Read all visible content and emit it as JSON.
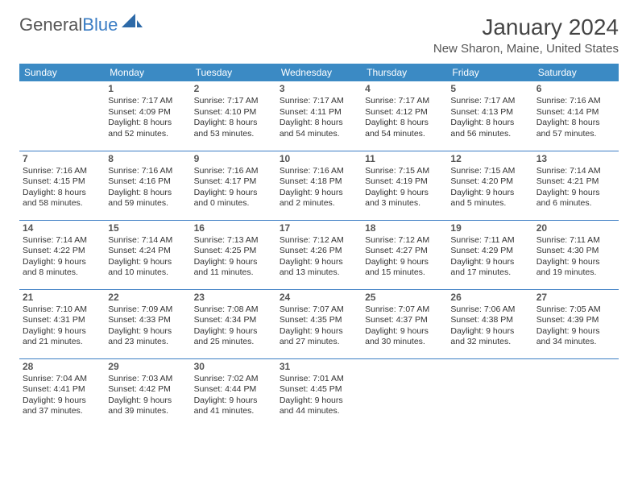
{
  "logo": {
    "part1": "General",
    "part2": "Blue"
  },
  "title": "January 2024",
  "location": "New Sharon, Maine, United States",
  "header_color": "#3b8ac4",
  "border_color": "#3b7dc4",
  "weekdays": [
    "Sunday",
    "Monday",
    "Tuesday",
    "Wednesday",
    "Thursday",
    "Friday",
    "Saturday"
  ],
  "grid": [
    [
      null,
      {
        "n": "1",
        "sr": "7:17 AM",
        "ss": "4:09 PM",
        "dl": "8 hours and 52 minutes."
      },
      {
        "n": "2",
        "sr": "7:17 AM",
        "ss": "4:10 PM",
        "dl": "8 hours and 53 minutes."
      },
      {
        "n": "3",
        "sr": "7:17 AM",
        "ss": "4:11 PM",
        "dl": "8 hours and 54 minutes."
      },
      {
        "n": "4",
        "sr": "7:17 AM",
        "ss": "4:12 PM",
        "dl": "8 hours and 54 minutes."
      },
      {
        "n": "5",
        "sr": "7:17 AM",
        "ss": "4:13 PM",
        "dl": "8 hours and 56 minutes."
      },
      {
        "n": "6",
        "sr": "7:16 AM",
        "ss": "4:14 PM",
        "dl": "8 hours and 57 minutes."
      }
    ],
    [
      {
        "n": "7",
        "sr": "7:16 AM",
        "ss": "4:15 PM",
        "dl": "8 hours and 58 minutes."
      },
      {
        "n": "8",
        "sr": "7:16 AM",
        "ss": "4:16 PM",
        "dl": "8 hours and 59 minutes."
      },
      {
        "n": "9",
        "sr": "7:16 AM",
        "ss": "4:17 PM",
        "dl": "9 hours and 0 minutes."
      },
      {
        "n": "10",
        "sr": "7:16 AM",
        "ss": "4:18 PM",
        "dl": "9 hours and 2 minutes."
      },
      {
        "n": "11",
        "sr": "7:15 AM",
        "ss": "4:19 PM",
        "dl": "9 hours and 3 minutes."
      },
      {
        "n": "12",
        "sr": "7:15 AM",
        "ss": "4:20 PM",
        "dl": "9 hours and 5 minutes."
      },
      {
        "n": "13",
        "sr": "7:14 AM",
        "ss": "4:21 PM",
        "dl": "9 hours and 6 minutes."
      }
    ],
    [
      {
        "n": "14",
        "sr": "7:14 AM",
        "ss": "4:22 PM",
        "dl": "9 hours and 8 minutes."
      },
      {
        "n": "15",
        "sr": "7:14 AM",
        "ss": "4:24 PM",
        "dl": "9 hours and 10 minutes."
      },
      {
        "n": "16",
        "sr": "7:13 AM",
        "ss": "4:25 PM",
        "dl": "9 hours and 11 minutes."
      },
      {
        "n": "17",
        "sr": "7:12 AM",
        "ss": "4:26 PM",
        "dl": "9 hours and 13 minutes."
      },
      {
        "n": "18",
        "sr": "7:12 AM",
        "ss": "4:27 PM",
        "dl": "9 hours and 15 minutes."
      },
      {
        "n": "19",
        "sr": "7:11 AM",
        "ss": "4:29 PM",
        "dl": "9 hours and 17 minutes."
      },
      {
        "n": "20",
        "sr": "7:11 AM",
        "ss": "4:30 PM",
        "dl": "9 hours and 19 minutes."
      }
    ],
    [
      {
        "n": "21",
        "sr": "7:10 AM",
        "ss": "4:31 PM",
        "dl": "9 hours and 21 minutes."
      },
      {
        "n": "22",
        "sr": "7:09 AM",
        "ss": "4:33 PM",
        "dl": "9 hours and 23 minutes."
      },
      {
        "n": "23",
        "sr": "7:08 AM",
        "ss": "4:34 PM",
        "dl": "9 hours and 25 minutes."
      },
      {
        "n": "24",
        "sr": "7:07 AM",
        "ss": "4:35 PM",
        "dl": "9 hours and 27 minutes."
      },
      {
        "n": "25",
        "sr": "7:07 AM",
        "ss": "4:37 PM",
        "dl": "9 hours and 30 minutes."
      },
      {
        "n": "26",
        "sr": "7:06 AM",
        "ss": "4:38 PM",
        "dl": "9 hours and 32 minutes."
      },
      {
        "n": "27",
        "sr": "7:05 AM",
        "ss": "4:39 PM",
        "dl": "9 hours and 34 minutes."
      }
    ],
    [
      {
        "n": "28",
        "sr": "7:04 AM",
        "ss": "4:41 PM",
        "dl": "9 hours and 37 minutes."
      },
      {
        "n": "29",
        "sr": "7:03 AM",
        "ss": "4:42 PM",
        "dl": "9 hours and 39 minutes."
      },
      {
        "n": "30",
        "sr": "7:02 AM",
        "ss": "4:44 PM",
        "dl": "9 hours and 41 minutes."
      },
      {
        "n": "31",
        "sr": "7:01 AM",
        "ss": "4:45 PM",
        "dl": "9 hours and 44 minutes."
      },
      null,
      null,
      null
    ]
  ],
  "labels": {
    "sunrise": "Sunrise:",
    "sunset": "Sunset:",
    "daylight": "Daylight:"
  }
}
